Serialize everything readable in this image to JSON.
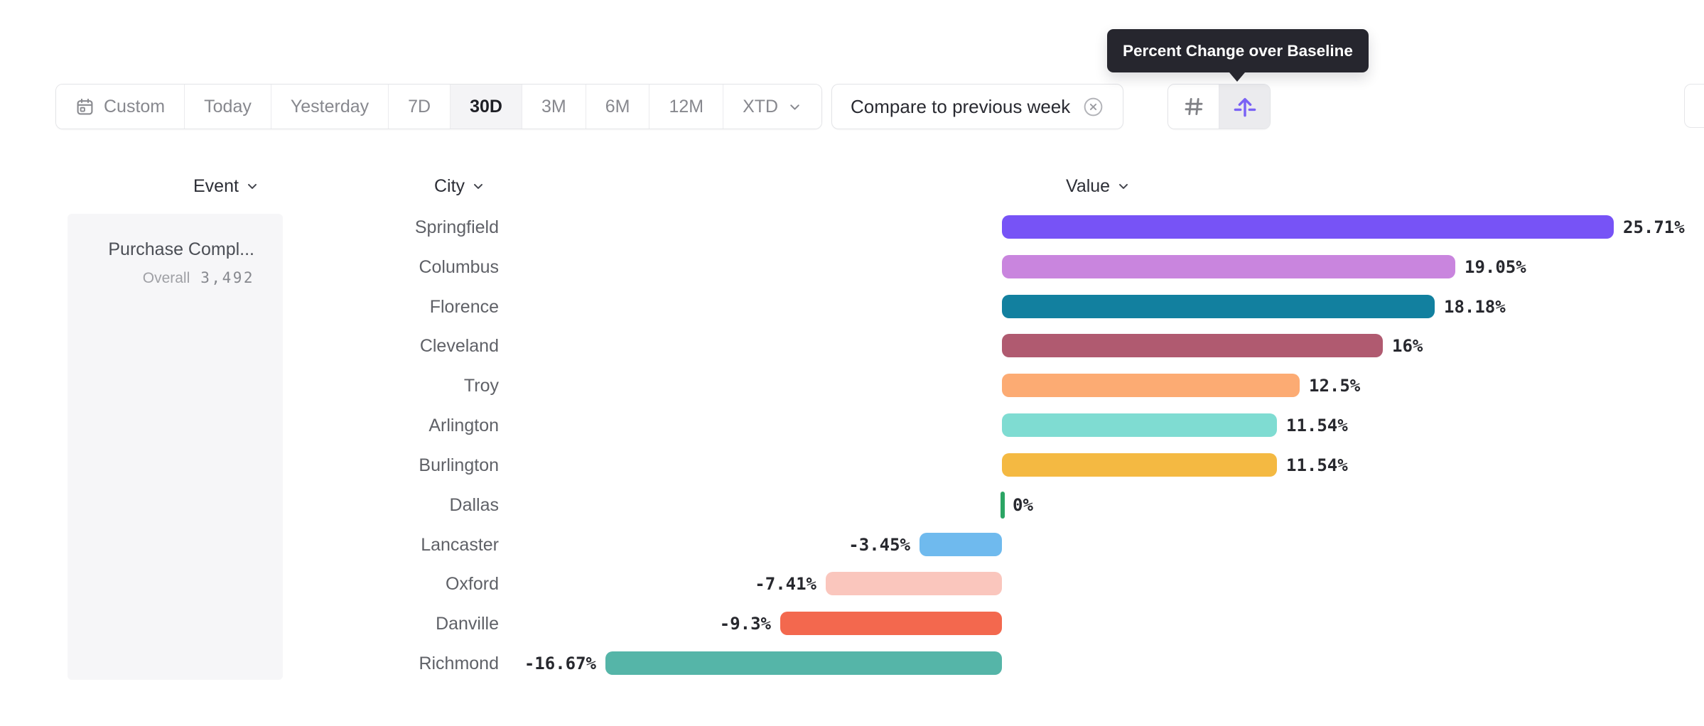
{
  "toolbar": {
    "date_ranges": [
      {
        "label": "Custom",
        "icon": "calendar-icon",
        "selected": false
      },
      {
        "label": "Today",
        "selected": false
      },
      {
        "label": "Yesterday",
        "selected": false
      },
      {
        "label": "7D",
        "selected": false
      },
      {
        "label": "30D",
        "selected": true
      },
      {
        "label": "3M",
        "selected": false
      },
      {
        "label": "6M",
        "selected": false
      },
      {
        "label": "12M",
        "selected": false
      },
      {
        "label": "XTD",
        "chevron": true,
        "selected": false
      }
    ],
    "compare_chip_label": "Compare to previous week",
    "view_toggle": [
      {
        "name": "grid-view",
        "icon": "hash-grid-icon",
        "selected": false,
        "icon_color": "#808186"
      },
      {
        "name": "percent-change-over-baseline",
        "icon": "arrow-up-from-line-icon",
        "selected": true,
        "icon_color": "#7a62f5"
      }
    ]
  },
  "tooltip": {
    "text": "Percent Change over Baseline",
    "bg_color": "#26262e"
  },
  "column_headers": {
    "event": "Event",
    "city": "City",
    "value": "Value"
  },
  "event_card": {
    "title": "Purchase Compl...",
    "metric_label": "Overall",
    "metric_value": "3,492"
  },
  "chart_data": {
    "type": "bar",
    "orientation": "horizontal",
    "categories": [
      "Springfield",
      "Columbus",
      "Florence",
      "Cleveland",
      "Troy",
      "Arlington",
      "Burlington",
      "Dallas",
      "Lancaster",
      "Oxford",
      "Danville",
      "Richmond"
    ],
    "values": [
      25.71,
      19.05,
      18.18,
      16,
      12.5,
      11.54,
      11.54,
      0,
      -3.45,
      -7.41,
      -9.3,
      -16.67
    ],
    "value_labels": [
      "25.71%",
      "19.05%",
      "18.18%",
      "16%",
      "12.5%",
      "11.54%",
      "11.54%",
      "0%",
      "-3.45%",
      "-7.41%",
      "-9.3%",
      "-16.67%"
    ],
    "bar_colors": [
      "#7753f6",
      "#c985de",
      "#12809f",
      "#b05a70",
      "#fcab73",
      "#7fdcd2",
      "#f4b942",
      "#2ba564",
      "#6fbaee",
      "#fac6bd",
      "#f3684e",
      "#55b5a8"
    ],
    "unit": "%",
    "baseline": 0,
    "xlim": [
      -16.67,
      25.71
    ],
    "grid": false,
    "legend": "none",
    "value_label_position": "outside-end"
  }
}
